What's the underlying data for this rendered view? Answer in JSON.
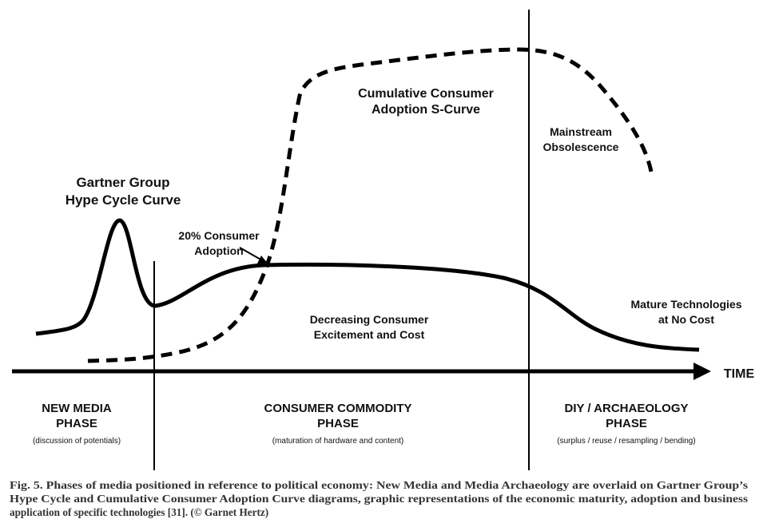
{
  "labels": {
    "s_curve": [
      "Cumulative Consumer",
      "Adoption S-Curve"
    ],
    "obsolescence": [
      "Mainstream",
      "Obsolescence"
    ],
    "hype_cycle": [
      "Gartner Group",
      "Hype Cycle Curve"
    ],
    "adoption_20": [
      "20% Consumer",
      "Adoption"
    ],
    "decreasing": [
      "Decreasing Consumer",
      "Excitement and Cost"
    ],
    "mature": [
      "Mature Technologies",
      "at No Cost"
    ],
    "axis": "TIME"
  },
  "phases": [
    {
      "title": [
        "NEW MEDIA",
        "PHASE"
      ],
      "note": "(discussion of potentials)"
    },
    {
      "title": [
        "CONSUMER COMMODITY",
        "PHASE"
      ],
      "note": "(maturation of hardware and content)"
    },
    {
      "title": [
        "DIY / ARCHAEOLOGY",
        "PHASE"
      ],
      "note": "(surplus / reuse / resampling / bending)"
    }
  ],
  "caption": [
    "Fig. 5. Phases of media positioned in reference to political economy: New Media and Media Archaeology are overlaid on Gartner Group’s",
    "Hype Cycle and Cumulative Consumer Adoption Curve diagrams, graphic representations of the economic maturity, adoption and business",
    "application of specific technologies [31]. (© Garnet Hertz)"
  ]
}
